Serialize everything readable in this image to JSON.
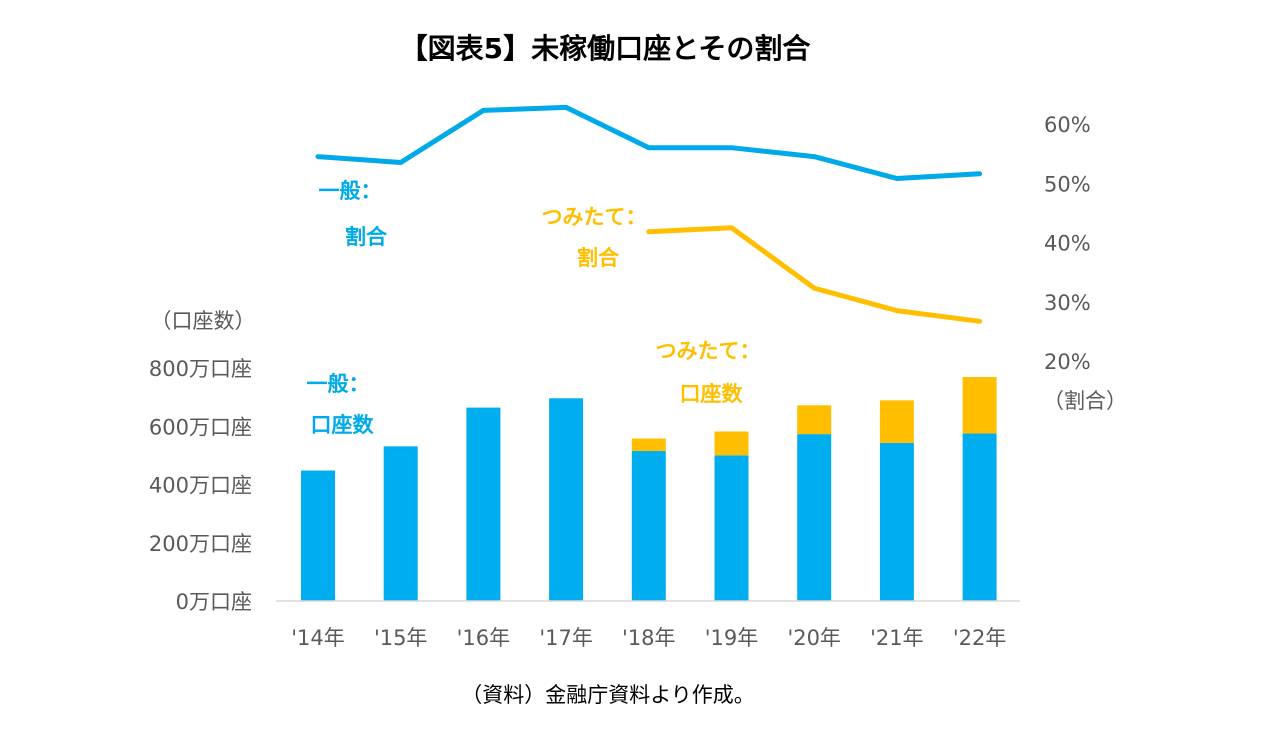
{
  "chart_data": {
    "type": "bar+line",
    "title": "【図表5】未稼働口座とその割合",
    "categories": [
      "'14年",
      "'15年",
      "'16年",
      "'17年",
      "'18年",
      "'19年",
      "'20年",
      "'21年",
      "'22年"
    ],
    "bar_series": [
      {
        "name": "一般：口座数",
        "color": "#00AEEF",
        "values": [
          448,
          531,
          664,
          696,
          515,
          500,
          573,
          543,
          575
        ]
      },
      {
        "name": "つみたて：口座数",
        "color": "#FFBF00",
        "values": [
          null,
          null,
          null,
          null,
          43,
          82,
          99,
          146,
          194
        ]
      }
    ],
    "line_series": [
      {
        "name": "一般：割合",
        "color": "#00A9E7",
        "values": [
          54.5,
          53.5,
          62.3,
          62.8,
          56.0,
          56.0,
          54.5,
          50.8,
          51.6
        ]
      },
      {
        "name": "つみたて：割合",
        "color": "#FFBF00",
        "values": [
          null,
          null,
          null,
          null,
          41.8,
          42.5,
          32.3,
          28.5,
          26.7
        ]
      }
    ],
    "left_axis": {
      "label": "（口座数）",
      "ylim": [
        0,
        800
      ],
      "ticks": [
        "0万口座",
        "200万口座",
        "400万口座",
        "600万口座",
        "800万口座"
      ],
      "tick_values": [
        0,
        200,
        400,
        600,
        800
      ]
    },
    "right_axis": {
      "label": "（割合）",
      "ylim": [
        20,
        60
      ],
      "ticks": [
        "20%",
        "30%",
        "40%",
        "50%",
        "60%"
      ],
      "tick_values": [
        20,
        30,
        40,
        50,
        60
      ]
    },
    "annotations": {
      "gen_ratio": [
        "一般：",
        "割合"
      ],
      "tsu_ratio": [
        "つみたて：",
        "割合"
      ],
      "gen_count": [
        "一般：",
        "口座数"
      ],
      "tsu_count": [
        "つみたて：",
        "口座数"
      ]
    },
    "source": "（資料）金融庁資料より作成。"
  }
}
